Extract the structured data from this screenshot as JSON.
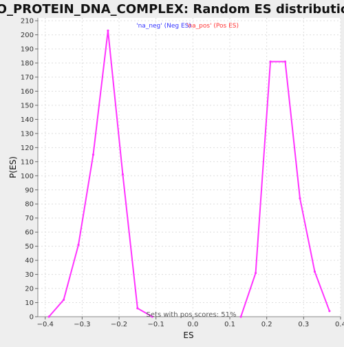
{
  "chart_data": {
    "type": "line",
    "title": "GO_PROTEIN_DNA_COMPLEX: Random ES distribution",
    "xlabel": "ES",
    "ylabel": "P(ES)",
    "xlim": [
      -0.42,
      0.4
    ],
    "ylim": [
      0,
      212
    ],
    "x_ticks": [
      -0.4,
      -0.3,
      -0.2,
      -0.1,
      0.0,
      0.1,
      0.2,
      0.3,
      0.4
    ],
    "x_tick_labels": [
      "−0.4",
      "−0.3",
      "−0.2",
      "−0.1",
      "0.0",
      "0.1",
      "0.2",
      "0.3",
      "0.4"
    ],
    "y_ticks": [
      0,
      10,
      20,
      30,
      40,
      50,
      60,
      70,
      80,
      90,
      100,
      110,
      120,
      130,
      140,
      150,
      160,
      170,
      180,
      190,
      200,
      210
    ],
    "grid": true,
    "legend": [
      {
        "label": "'na_neg' (Neg ES)",
        "color": "#3333ff"
      },
      {
        "label": "'na_pos' (Pos ES)",
        "color": "#ff3333"
      }
    ],
    "annotation": "Sets with pos scores: 51%",
    "series": [
      {
        "name": "'na_neg' (Neg ES)",
        "color": "#ff33ff",
        "x": [
          -0.39,
          -0.35,
          -0.31,
          -0.27,
          -0.23,
          -0.19,
          -0.15,
          -0.11
        ],
        "y": [
          0,
          12,
          51,
          115,
          203,
          101,
          6,
          0
        ]
      },
      {
        "name": "'na_pos' (Pos ES)",
        "color": "#ff33ff",
        "x": [
          0.13,
          0.17,
          0.21,
          0.25,
          0.29,
          0.33,
          0.37
        ],
        "y": [
          0,
          31,
          181,
          181,
          84,
          32,
          4
        ]
      }
    ]
  }
}
